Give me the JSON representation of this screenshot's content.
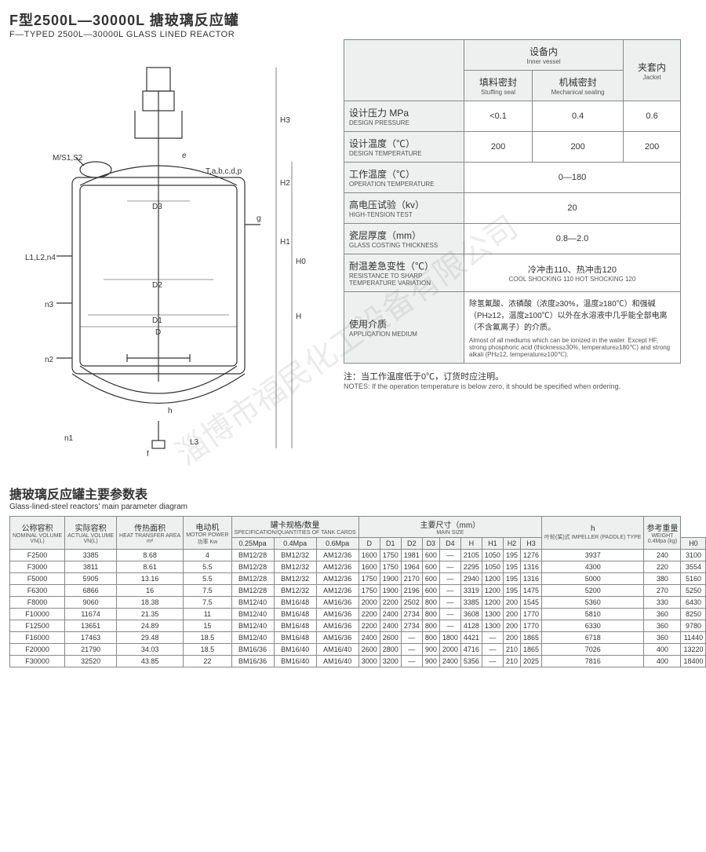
{
  "header": {
    "title_cn": "F型2500L—30000L 搪玻璃反应罐",
    "title_en": "F—TYPED 2500L—30000L GLASS LINED REACTOR"
  },
  "watermark": "淄博市福民化工设备有限公司",
  "diagram": {
    "labels": [
      "M/S1,S2",
      "e",
      "T,a,b,c,d,p",
      "g",
      "L1,L2,n4",
      "n3",
      "n2",
      "n1",
      "f",
      "h",
      "L3",
      "D",
      "D1",
      "D2",
      "D3",
      "H",
      "H0",
      "H1",
      "H2",
      "H3"
    ]
  },
  "spec_table": {
    "header_cols": [
      {
        "cn": "设备内",
        "en": "Inner vessel",
        "span": 2
      },
      {
        "cn": "夹套内",
        "en": "Jacket",
        "span": 1
      }
    ],
    "sub_cols": [
      {
        "cn": "填料密封",
        "en": "Stuffing seal"
      },
      {
        "cn": "机械密封",
        "en": "Mechanical sealing"
      }
    ],
    "rows": [
      {
        "label_cn": "设计压力 MPa",
        "label_en": "DESIGN PRESSURE",
        "vals": [
          "<0.1",
          "0.4",
          "0.6"
        ]
      },
      {
        "label_cn": "设计温度（℃）",
        "label_en": "DESIGN TEMPERATURE",
        "vals": [
          "200",
          "200",
          "200"
        ]
      },
      {
        "label_cn": "工作温度（℃）",
        "label_en": "OPERATION TEMPERATURE",
        "vals_merged": "0—180",
        "merged_span": 3
      },
      {
        "label_cn": "高电压试验（kv）",
        "label_en": "HIGH-TENSION TEST",
        "vals_merged": "20",
        "merged_span": 3
      },
      {
        "label_cn": "瓷层厚度（mm）",
        "label_en": "GLASS COSTING THICKNESS",
        "vals_merged": "0.8—2.0",
        "merged_span": 3
      },
      {
        "label_cn": "耐温差急变性（℃）",
        "label_en": "RESISTANCE TO SHARP TEMPERATURE VARIATION",
        "vals_merged": "冷冲击110、热冲击120",
        "sub_en": "COOL SHOCKING 110 HOT SHOCKING 120",
        "merged_span": 3
      },
      {
        "label_cn": "使用介质",
        "label_en": "APPLICATION MEDIUM",
        "medium_cn": "除氢氟酸、浓磷酸（浓度≥30%，温度≥180℃）和强碱（PH≥12，温度≥100℃）以外在水溶液中几乎能全部电离（不含氟离子）的介质。",
        "medium_en": "Almost of all mediums which can be ionized in the water. Except HF, strong phosphoric acid (thickness≥30%, temperature≥180℃) and strong alkali (PH≥12, temperature≥100℃).",
        "merged_span": 3
      }
    ],
    "note_cn": "注：当工作温度低于0℃，订货时应注明。",
    "note_en": "NOTES: If the operation temperature is below zero, it should be specified when ordering."
  },
  "param_title": {
    "cn": "搪玻璃反应罐主要参数表",
    "en": "Glass-lined-steel reactors' main parameter diagram"
  },
  "param_table": {
    "group_headers": [
      {
        "cn": "公称容积",
        "en": "NOMINAL VOLUME",
        "unit": "VN(L)"
      },
      {
        "cn": "实际容积",
        "en": "ACTUAL VOLUME",
        "unit": "VN(L)"
      },
      {
        "cn": "传热面积",
        "en": "HEAT TRANSFER AREA",
        "unit": "m²"
      },
      {
        "cn": "电动机",
        "en": "MOTOR POWER",
        "unit": "功率 Kw"
      },
      {
        "cn": "罐卡规格/数量",
        "en": "SPECIFICATION/QUANTITIES OF TANK CARDS",
        "span": 3
      },
      {
        "cn": "主要尺寸（mm）",
        "en": "MAIN SIZE",
        "span": 9
      },
      {
        "cn": "h",
        "en": "叶轮(桨)式 IMPELLER (PADDLE) TYPE"
      },
      {
        "cn": "参考重量",
        "en": "WEIGHT",
        "unit": "0.4Mpa (kg)"
      }
    ],
    "sub_headers": [
      "0.25Mpa",
      "0.4Mpa",
      "0.6Mpa",
      "D",
      "D1",
      "D2",
      "D3",
      "D4",
      "H",
      "H1",
      "H2",
      "H3",
      "H0"
    ],
    "rows": [
      [
        "F2500",
        "3385",
        "8.68",
        "4",
        "BM12/28",
        "BM12/32",
        "AM12/36",
        "1600",
        "1750",
        "1981",
        "600",
        "—",
        "2105",
        "1050",
        "195",
        "1276",
        "3937",
        "240",
        "3100"
      ],
      [
        "F3000",
        "3811",
        "8.61",
        "5.5",
        "BM12/28",
        "BM12/32",
        "AM12/36",
        "1600",
        "1750",
        "1964",
        "600",
        "—",
        "2295",
        "1050",
        "195",
        "1316",
        "4300",
        "220",
        "3554"
      ],
      [
        "F5000",
        "5905",
        "13.16",
        "5.5",
        "BM12/28",
        "BM12/32",
        "AM12/36",
        "1750",
        "1900",
        "2170",
        "600",
        "—",
        "2940",
        "1200",
        "195",
        "1316",
        "5000",
        "380",
        "5160"
      ],
      [
        "F6300",
        "6866",
        "16",
        "7.5",
        "BM12/28",
        "BM12/32",
        "AM12/36",
        "1750",
        "1900",
        "2196",
        "600",
        "—",
        "3319",
        "1200",
        "195",
        "1475",
        "5200",
        "270",
        "5250"
      ],
      [
        "F8000",
        "9060",
        "18.38",
        "7.5",
        "BM12/40",
        "BM16/48",
        "AM16/36",
        "2000",
        "2200",
        "2502",
        "800",
        "—",
        "3385",
        "1200",
        "200",
        "1545",
        "5360",
        "330",
        "6430"
      ],
      [
        "F10000",
        "11674",
        "21.35",
        "11",
        "BM12/40",
        "BM16/48",
        "AM16/36",
        "2200",
        "2400",
        "2734",
        "800",
        "—",
        "3608",
        "1300",
        "200",
        "1770",
        "5810",
        "360",
        "8250"
      ],
      [
        "F12500",
        "13651",
        "24.89",
        "15",
        "BM12/40",
        "BM16/48",
        "AM16/36",
        "2200",
        "2400",
        "2734",
        "800",
        "—",
        "4128",
        "1300",
        "200",
        "1770",
        "6330",
        "360",
        "9780"
      ],
      [
        "F16000",
        "17463",
        "29.48",
        "18.5",
        "BM12/40",
        "BM16/48",
        "AM16/36",
        "2400",
        "2600",
        "—",
        "800",
        "1800",
        "4421",
        "—",
        "200",
        "1865",
        "6718",
        "360",
        "11440"
      ],
      [
        "F20000",
        "21790",
        "34.03",
        "18.5",
        "BM16/36",
        "BM16/40",
        "AM16/40",
        "2600",
        "2800",
        "—",
        "900",
        "2000",
        "4716",
        "—",
        "210",
        "1865",
        "7026",
        "400",
        "13220"
      ],
      [
        "F30000",
        "32520",
        "43.85",
        "22",
        "BM16/36",
        "BM16/40",
        "AM16/40",
        "3000",
        "3200",
        "—",
        "900",
        "2400",
        "5356",
        "—",
        "210",
        "2025",
        "7816",
        "400",
        "18400"
      ]
    ]
  },
  "colors": {
    "border": "#888888",
    "header_bg": "#eef0ef",
    "text": "#333333"
  }
}
